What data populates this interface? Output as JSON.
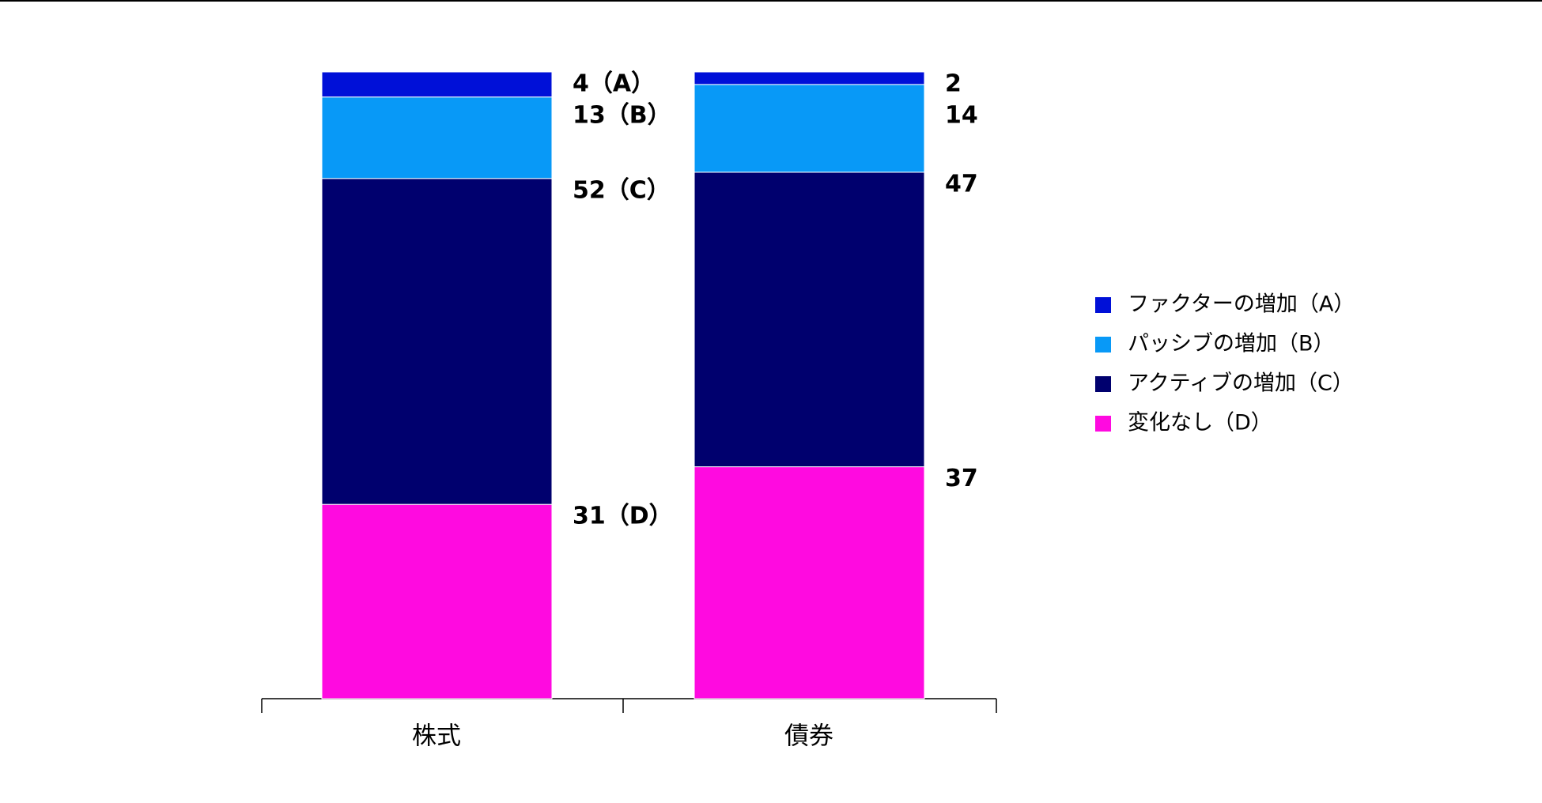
{
  "chart_data": {
    "type": "stacked_bar",
    "categories": [
      "株式",
      "債券"
    ],
    "series": [
      {
        "name": "ファクターの増加（A）",
        "color": "#0010d8",
        "values": [
          4,
          2
        ],
        "value_labels": [
          "4（A）",
          "2"
        ]
      },
      {
        "name": "パッシブの増加（B）",
        "color": "#0899f7",
        "values": [
          13,
          14
        ],
        "value_labels": [
          "13（B）",
          "14"
        ]
      },
      {
        "name": "アクティブの増加（C）",
        "color": "#00006e",
        "values": [
          52,
          47
        ],
        "value_labels": [
          "52（C）",
          "47"
        ]
      },
      {
        "name": "変化なし（D）",
        "color": "#ff0ae0",
        "values": [
          31,
          37
        ],
        "value_labels": [
          "31（D）",
          "37"
        ]
      }
    ],
    "ylim": [
      0,
      100
    ],
    "legend": "right"
  }
}
